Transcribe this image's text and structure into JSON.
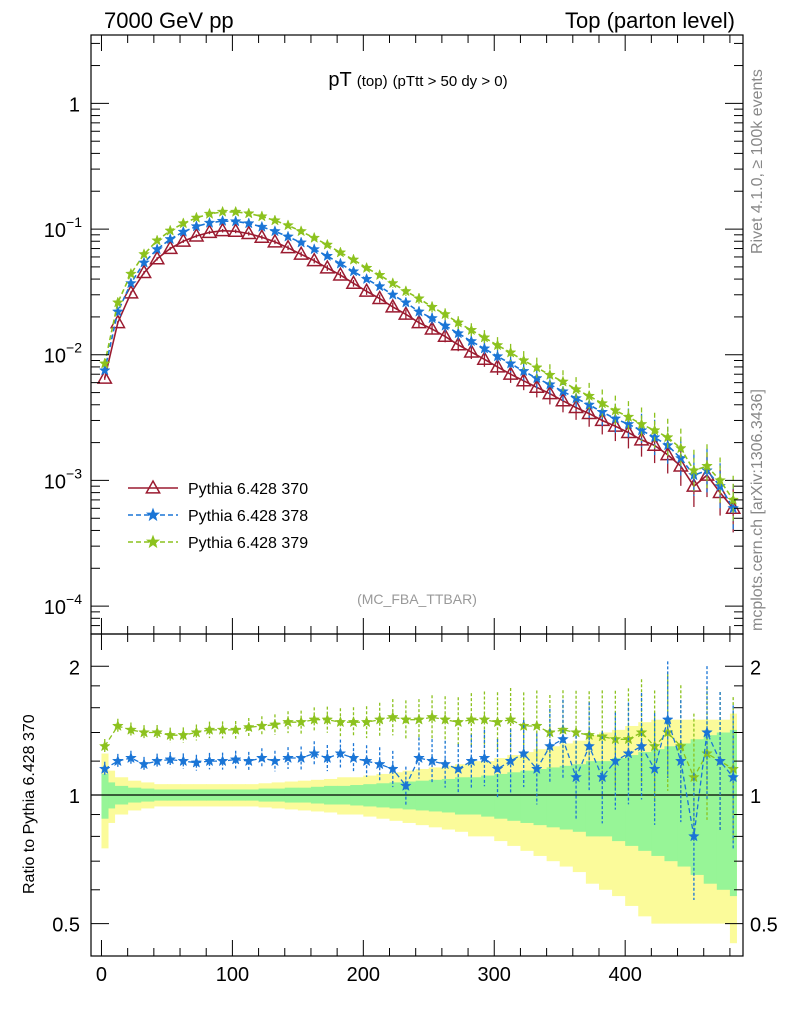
{
  "header": {
    "left": "7000 GeV pp",
    "right": "Top (parton level)"
  },
  "side_labels": {
    "rivet": "Rivet 4.1.0, ≥ 100k events",
    "mcplots": "mcplots.cern.ch [arXiv:1306.3436]"
  },
  "chart_data": [
    {
      "type": "line",
      "title_main": "pT",
      "title_sub": "(top)",
      "title_cut": "(pTtt > 50 dy > 0)",
      "watermark": "(MC_FBA_TTBAR)",
      "yscale": "log",
      "xlim": [
        -8,
        490
      ],
      "ylim": [
        6e-05,
        3.5
      ],
      "y_ticks": [
        {
          "value": 1,
          "mant": "1",
          "exp": ""
        },
        {
          "value": 0.1,
          "mant": "10",
          "exp": "−1"
        },
        {
          "value": 0.01,
          "mant": "10",
          "exp": "−2"
        },
        {
          "value": 0.001,
          "mant": "10",
          "exp": "−3"
        },
        {
          "value": 0.0001,
          "mant": "10",
          "exp": "−4"
        }
      ],
      "legend": [
        "Pythia 6.428 370",
        "Pythia 6.428 378",
        "Pythia 6.428 379"
      ],
      "series": [
        {
          "name": "Pythia 6.428 370",
          "color": "#9b1b30",
          "x": [
            2.5,
            12.5,
            22.5,
            32.5,
            42.5,
            52.5,
            62.5,
            72.5,
            82.5,
            92.5,
            102.5,
            112.5,
            122.5,
            132.5,
            142.5,
            152.5,
            162.5,
            172.5,
            182.5,
            192.5,
            202.5,
            212.5,
            222.5,
            232.5,
            242.5,
            252.5,
            262.5,
            272.5,
            282.5,
            292.5,
            302.5,
            312.5,
            322.5,
            332.5,
            342.5,
            352.5,
            362.5,
            372.5,
            382.5,
            392.5,
            402.5,
            412.5,
            422.5,
            432.5,
            442.5,
            452.5,
            462.5,
            472.5,
            482.5
          ],
          "values": [
            0.0065,
            0.018,
            0.031,
            0.045,
            0.058,
            0.07,
            0.08,
            0.088,
            0.094,
            0.097,
            0.096,
            0.092,
            0.086,
            0.079,
            0.071,
            0.063,
            0.056,
            0.049,
            0.043,
            0.037,
            0.032,
            0.028,
            0.024,
            0.021,
            0.018,
            0.016,
            0.014,
            0.012,
            0.0105,
            0.0092,
            0.008,
            0.007,
            0.0062,
            0.0055,
            0.0049,
            0.0043,
            0.0038,
            0.0034,
            0.003,
            0.0027,
            0.0024,
            0.0021,
            0.0019,
            0.0016,
            0.0013,
            0.0009,
            0.0011,
            0.0008,
            0.0006
          ]
        },
        {
          "name": "Pythia 6.428 378",
          "color": "#1a75d6",
          "x": [
            2.5,
            12.5,
            22.5,
            32.5,
            42.5,
            52.5,
            62.5,
            72.5,
            82.5,
            92.5,
            102.5,
            112.5,
            122.5,
            132.5,
            142.5,
            152.5,
            162.5,
            172.5,
            182.5,
            192.5,
            202.5,
            212.5,
            222.5,
            232.5,
            242.5,
            252.5,
            262.5,
            272.5,
            282.5,
            292.5,
            302.5,
            312.5,
            322.5,
            332.5,
            342.5,
            352.5,
            362.5,
            372.5,
            382.5,
            392.5,
            402.5,
            412.5,
            422.5,
            432.5,
            442.5,
            452.5,
            462.5,
            472.5,
            482.5
          ],
          "values": [
            0.0075,
            0.022,
            0.037,
            0.054,
            0.069,
            0.083,
            0.095,
            0.105,
            0.112,
            0.116,
            0.115,
            0.111,
            0.104,
            0.096,
            0.087,
            0.078,
            0.069,
            0.061,
            0.053,
            0.046,
            0.04,
            0.035,
            0.03,
            0.026,
            0.022,
            0.0195,
            0.017,
            0.0148,
            0.0128,
            0.0112,
            0.0097,
            0.0085,
            0.0074,
            0.0065,
            0.0058,
            0.0051,
            0.0045,
            0.004,
            0.0035,
            0.0031,
            0.0028,
            0.0025,
            0.0022,
            0.0019,
            0.0015,
            0.0011,
            0.0012,
            0.0009,
            0.0006
          ]
        },
        {
          "name": "Pythia 6.428 379",
          "color": "#8cc21e",
          "x": [
            2.5,
            12.5,
            22.5,
            32.5,
            42.5,
            52.5,
            62.5,
            72.5,
            82.5,
            92.5,
            102.5,
            112.5,
            122.5,
            132.5,
            142.5,
            152.5,
            162.5,
            172.5,
            182.5,
            192.5,
            202.5,
            212.5,
            222.5,
            232.5,
            242.5,
            252.5,
            262.5,
            272.5,
            282.5,
            292.5,
            302.5,
            312.5,
            322.5,
            332.5,
            342.5,
            352.5,
            362.5,
            372.5,
            382.5,
            392.5,
            402.5,
            412.5,
            422.5,
            432.5,
            442.5,
            452.5,
            462.5,
            472.5,
            482.5
          ],
          "values": [
            0.0085,
            0.026,
            0.044,
            0.063,
            0.081,
            0.097,
            0.111,
            0.123,
            0.132,
            0.137,
            0.137,
            0.133,
            0.126,
            0.117,
            0.107,
            0.096,
            0.085,
            0.075,
            0.065,
            0.057,
            0.049,
            0.043,
            0.037,
            0.032,
            0.028,
            0.024,
            0.021,
            0.018,
            0.0157,
            0.0137,
            0.0119,
            0.0104,
            0.009,
            0.0079,
            0.0069,
            0.0061,
            0.0053,
            0.0047,
            0.0041,
            0.0036,
            0.0032,
            0.0028,
            0.0025,
            0.0022,
            0.0018,
            0.0012,
            0.0013,
            0.001,
            0.0007
          ]
        }
      ]
    },
    {
      "type": "line",
      "ylabel": "Ratio to Pythia 6.428 370",
      "yscale": "log",
      "xlim": [
        -8,
        490
      ],
      "ylim": [
        0.42,
        2.38
      ],
      "x_ticks": [
        0,
        100,
        200,
        300,
        400
      ],
      "y_ticks": [
        0.5,
        1,
        2
      ],
      "bands": {
        "x_edges": [
          0,
          5,
          10,
          20,
          30,
          40,
          50,
          60,
          70,
          80,
          90,
          100,
          110,
          120,
          130,
          140,
          150,
          160,
          170,
          180,
          190,
          200,
          210,
          220,
          230,
          240,
          250,
          260,
          270,
          280,
          290,
          300,
          310,
          320,
          330,
          340,
          350,
          360,
          370,
          380,
          390,
          400,
          410,
          420,
          430,
          440,
          450,
          460,
          470,
          480,
          485
        ],
        "inner_half_width": [
          0.12,
          0.07,
          0.05,
          0.04,
          0.035,
          0.03,
          0.03,
          0.03,
          0.03,
          0.03,
          0.03,
          0.03,
          0.03,
          0.035,
          0.035,
          0.04,
          0.04,
          0.045,
          0.05,
          0.05,
          0.055,
          0.06,
          0.065,
          0.07,
          0.075,
          0.08,
          0.085,
          0.09,
          0.1,
          0.1,
          0.11,
          0.12,
          0.13,
          0.14,
          0.15,
          0.16,
          0.17,
          0.18,
          0.2,
          0.2,
          0.22,
          0.24,
          0.26,
          0.28,
          0.3,
          0.32,
          0.35,
          0.38,
          0.4,
          0.42
        ],
        "outer_half_width": [
          0.25,
          0.14,
          0.1,
          0.08,
          0.07,
          0.06,
          0.06,
          0.06,
          0.06,
          0.06,
          0.06,
          0.06,
          0.06,
          0.065,
          0.07,
          0.075,
          0.08,
          0.085,
          0.09,
          0.1,
          0.1,
          0.11,
          0.12,
          0.13,
          0.14,
          0.15,
          0.16,
          0.17,
          0.18,
          0.2,
          0.2,
          0.22,
          0.24,
          0.26,
          0.28,
          0.3,
          0.32,
          0.34,
          0.38,
          0.4,
          0.42,
          0.45,
          0.48,
          0.5,
          0.5,
          0.5,
          0.5,
          0.5,
          0.5,
          0.55
        ]
      },
      "series": [
        {
          "name": "Pythia 6.428 378",
          "color": "#1a75d6",
          "values": [
            1.15,
            1.2,
            1.22,
            1.18,
            1.2,
            1.21,
            1.2,
            1.19,
            1.2,
            1.2,
            1.21,
            1.2,
            1.22,
            1.2,
            1.22,
            1.22,
            1.25,
            1.22,
            1.25,
            1.22,
            1.2,
            1.18,
            1.15,
            1.05,
            1.22,
            1.2,
            1.18,
            1.15,
            1.2,
            1.22,
            1.15,
            1.2,
            1.25,
            1.15,
            1.3,
            1.35,
            1.1,
            1.3,
            1.1,
            1.2,
            1.25,
            1.3,
            1.15,
            1.5,
            1.2,
            0.8,
            1.4,
            1.2,
            1.1
          ]
        },
        {
          "name": "Pythia 6.428 379",
          "color": "#8cc21e",
          "values": [
            1.3,
            1.45,
            1.42,
            1.4,
            1.4,
            1.38,
            1.38,
            1.4,
            1.42,
            1.42,
            1.42,
            1.44,
            1.45,
            1.46,
            1.48,
            1.48,
            1.5,
            1.5,
            1.48,
            1.48,
            1.48,
            1.5,
            1.52,
            1.5,
            1.5,
            1.52,
            1.5,
            1.48,
            1.5,
            1.5,
            1.48,
            1.5,
            1.45,
            1.45,
            1.4,
            1.42,
            1.4,
            1.38,
            1.37,
            1.35,
            1.35,
            1.4,
            1.3,
            1.4,
            1.3,
            1.1,
            1.25,
            1.2,
            1.15
          ]
        }
      ]
    }
  ]
}
